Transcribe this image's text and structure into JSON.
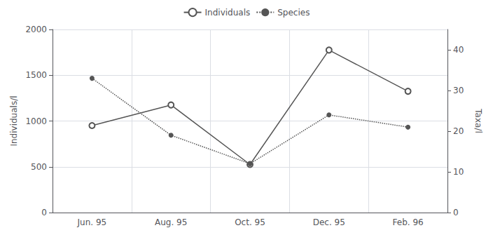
{
  "chart_data": {
    "type": "line",
    "categories": [
      "Jun. 95",
      "Aug. 95",
      "Oct. 95",
      "Dec. 95",
      "Feb. 96"
    ],
    "series": [
      {
        "name": "Individuals",
        "color": "#555555",
        "values": [
          950,
          1175,
          525,
          1775,
          1325
        ],
        "marker": "circle_open",
        "line_style": "solid"
      },
      {
        "name": "Species",
        "color": "#555555",
        "values": [
          33,
          19,
          12,
          24,
          21
        ],
        "marker": "circle",
        "line_style": "dotted",
        "axis": "y2"
      }
    ],
    "ylabel": "Individuals/l",
    "y2label": "Taxa/l",
    "ylim": [
      0,
      2000
    ],
    "yticks": [
      0,
      500,
      1000,
      1500,
      2000
    ],
    "y2lim": [
      0,
      45
    ],
    "y2ticks": [
      0,
      10,
      20,
      30,
      40
    ],
    "grid": true,
    "legend": "top"
  }
}
